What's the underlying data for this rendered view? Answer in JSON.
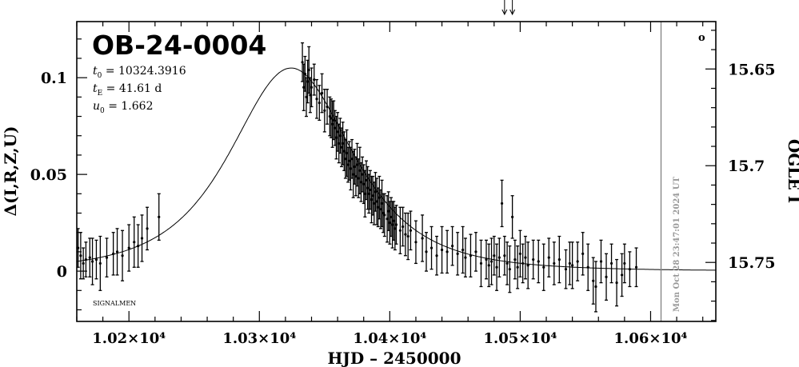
{
  "chart_data": {
    "type": "scatter",
    "title": "OB-24-0004",
    "xlabel": "HJD – 2450000",
    "ylabel": "Δ(I,R,Z,U)",
    "ylabel_right": "OGLE I",
    "xlim": [
      10160,
      10650
    ],
    "ylim": [
      -0.026,
      0.129
    ],
    "x_ticks": [
      {
        "value": 10200,
        "label": "1.02×10⁴"
      },
      {
        "value": 10300,
        "label": "1.03×10⁴"
      },
      {
        "value": 10400,
        "label": "1.04×10⁴"
      },
      {
        "value": 10500,
        "label": "1.05×10⁴"
      },
      {
        "value": 10600,
        "label": "1.06×10⁴"
      }
    ],
    "y_ticks": [
      {
        "value": 0,
        "label": "0"
      },
      {
        "value": 0.05,
        "label": "0.05"
      },
      {
        "value": 0.1,
        "label": "0.1"
      }
    ],
    "right_ticks": [
      {
        "value": 0.1045,
        "label": "15.65"
      },
      {
        "value": 0.0545,
        "label": "15.7"
      },
      {
        "value": 0.0045,
        "label": "15.75"
      }
    ],
    "params": [
      {
        "sym": "t",
        "sub": "0",
        "text": " = 10324.3916"
      },
      {
        "sym": "t",
        "sub": "E",
        "text": " = 41.61 d"
      },
      {
        "sym": "u",
        "sub": "0",
        "text": " = 1.662"
      }
    ],
    "model": {
      "t0": 10324.3916,
      "tE": 41.61,
      "u0": 1.662,
      "baseline": 0.0
    },
    "timestamp": "Mon Oct 28 23:47:01 2024 UT",
    "timestamp_x": 10608,
    "marker_label": "o",
    "footer": "SIGNALMEN",
    "arrows_x": [
      10488,
      10494
    ],
    "grid": false,
    "legend": "none",
    "series": [
      {
        "points": [
          [
            10161,
            0.012,
            0.01
          ],
          [
            10163,
            0.008,
            0.012
          ],
          [
            10165,
            0.004,
            0.008
          ],
          [
            10167,
            0.006,
            0.009
          ],
          [
            10170,
            0.007,
            0.01
          ],
          [
            10172,
            0.005,
            0.012
          ],
          [
            10175,
            0.006,
            0.01
          ],
          [
            10178,
            0.004,
            0.014
          ],
          [
            10183,
            0.007,
            0.01
          ],
          [
            10188,
            0.009,
            0.011
          ],
          [
            10191,
            0.01,
            0.012
          ],
          [
            10195,
            0.008,
            0.013
          ],
          [
            10200,
            0.012,
            0.012
          ],
          [
            10204,
            0.015,
            0.013
          ],
          [
            10207,
            0.013,
            0.011
          ],
          [
            10210,
            0.017,
            0.012
          ],
          [
            10214,
            0.022,
            0.011
          ],
          [
            10223,
            0.028,
            0.012
          ],
          [
            10333,
            0.108,
            0.01
          ],
          [
            10334,
            0.095,
            0.012
          ],
          [
            10335,
            0.102,
            0.009
          ],
          [
            10336,
            0.09,
            0.01
          ],
          [
            10337,
            0.098,
            0.011
          ],
          [
            10338,
            0.104,
            0.012
          ],
          [
            10339,
            0.091,
            0.009
          ],
          [
            10340,
            0.095,
            0.01
          ],
          [
            10342,
            0.099,
            0.008
          ],
          [
            10344,
            0.089,
            0.01
          ],
          [
            10346,
            0.087,
            0.009
          ],
          [
            10348,
            0.092,
            0.01
          ],
          [
            10350,
            0.083,
            0.011
          ],
          [
            10352,
            0.085,
            0.009
          ],
          [
            10354,
            0.08,
            0.01
          ],
          [
            10355,
            0.079,
            0.01
          ],
          [
            10356,
            0.076,
            0.012
          ],
          [
            10357,
            0.078,
            0.01
          ],
          [
            10358,
            0.074,
            0.009
          ],
          [
            10359,
            0.069,
            0.011
          ],
          [
            10360,
            0.072,
            0.01
          ],
          [
            10361,
            0.066,
            0.01
          ],
          [
            10362,
            0.07,
            0.009
          ],
          [
            10363,
            0.064,
            0.01
          ],
          [
            10364,
            0.066,
            0.011
          ],
          [
            10365,
            0.062,
            0.01
          ],
          [
            10366,
            0.058,
            0.01
          ],
          [
            10367,
            0.061,
            0.012
          ],
          [
            10368,
            0.055,
            0.009
          ],
          [
            10369,
            0.057,
            0.01
          ],
          [
            10370,
            0.053,
            0.011
          ],
          [
            10371,
            0.058,
            0.01
          ],
          [
            10372,
            0.05,
            0.012
          ],
          [
            10373,
            0.054,
            0.009
          ],
          [
            10374,
            0.049,
            0.01
          ],
          [
            10375,
            0.055,
            0.011
          ],
          [
            10376,
            0.048,
            0.01
          ],
          [
            10377,
            0.052,
            0.012
          ],
          [
            10378,
            0.046,
            0.01
          ],
          [
            10379,
            0.05,
            0.009
          ],
          [
            10380,
            0.045,
            0.01
          ],
          [
            10381,
            0.04,
            0.012
          ],
          [
            10382,
            0.047,
            0.01
          ],
          [
            10383,
            0.043,
            0.011
          ],
          [
            10384,
            0.04,
            0.01
          ],
          [
            10385,
            0.042,
            0.01
          ],
          [
            10386,
            0.037,
            0.012
          ],
          [
            10387,
            0.039,
            0.01
          ],
          [
            10388,
            0.035,
            0.011
          ],
          [
            10389,
            0.041,
            0.01
          ],
          [
            10390,
            0.036,
            0.012
          ],
          [
            10391,
            0.033,
            0.01
          ],
          [
            10392,
            0.038,
            0.011
          ],
          [
            10393,
            0.032,
            0.01
          ],
          [
            10394,
            0.035,
            0.012
          ],
          [
            10395,
            0.03,
            0.01
          ],
          [
            10396,
            0.029,
            0.011
          ],
          [
            10398,
            0.027,
            0.012
          ],
          [
            10399,
            0.031,
            0.01
          ],
          [
            10400,
            0.025,
            0.011
          ],
          [
            10401,
            0.028,
            0.01
          ],
          [
            10402,
            0.024,
            0.012
          ],
          [
            10403,
            0.026,
            0.01
          ],
          [
            10404,
            0.022,
            0.011
          ],
          [
            10405,
            0.024,
            0.01
          ],
          [
            10408,
            0.021,
            0.012
          ],
          [
            10410,
            0.023,
            0.01
          ],
          [
            10412,
            0.019,
            0.011
          ],
          [
            10414,
            0.018,
            0.012
          ],
          [
            10416,
            0.021,
            0.01
          ],
          [
            10420,
            0.015,
            0.011
          ],
          [
            10425,
            0.017,
            0.012
          ],
          [
            10428,
            0.01,
            0.01
          ],
          [
            10432,
            0.012,
            0.011
          ],
          [
            10436,
            0.008,
            0.01
          ],
          [
            10440,
            0.011,
            0.012
          ],
          [
            10444,
            0.01,
            0.011
          ],
          [
            10448,
            0.013,
            0.01
          ],
          [
            10452,
            0.009,
            0.011
          ],
          [
            10456,
            0.011,
            0.012
          ],
          [
            10458,
            0.007,
            0.01
          ],
          [
            10462,
            0.008,
            0.011
          ],
          [
            10466,
            0.01,
            0.01
          ],
          [
            10470,
            0.004,
            0.012
          ],
          [
            10474,
            0.006,
            0.01
          ],
          [
            10476,
            0.003,
            0.011
          ],
          [
            10478,
            0.005,
            0.012
          ],
          [
            10480,
            0.008,
            0.01
          ],
          [
            10482,
            0.002,
            0.012
          ],
          [
            10484,
            0.007,
            0.01
          ],
          [
            10486,
            0.035,
            0.012
          ],
          [
            10488,
            0.008,
            0.01
          ],
          [
            10490,
            0.004,
            0.011
          ],
          [
            10492,
            0.001,
            0.012
          ],
          [
            10494,
            0.028,
            0.011
          ],
          [
            10496,
            0.006,
            0.01
          ],
          [
            10498,
            0.002,
            0.011
          ],
          [
            10500,
            0.009,
            0.012
          ],
          [
            10502,
            0.004,
            0.01
          ],
          [
            10504,
            0.007,
            0.011
          ],
          [
            10506,
            0.003,
            0.012
          ],
          [
            10510,
            0.006,
            0.01
          ],
          [
            10514,
            0.005,
            0.011
          ],
          [
            10518,
            0.002,
            0.012
          ],
          [
            10522,
            0.007,
            0.01
          ],
          [
            10526,
            0.004,
            0.011
          ],
          [
            10530,
            0.006,
            0.012
          ],
          [
            10535,
            0.001,
            0.01
          ],
          [
            10538,
            0.004,
            0.011
          ],
          [
            10540,
            0.003,
            0.012
          ],
          [
            10544,
            0.005,
            0.01
          ],
          [
            10548,
            0.009,
            0.011
          ],
          [
            10552,
            0.002,
            0.012
          ],
          [
            10556,
            -0.005,
            0.012
          ],
          [
            10558,
            -0.008,
            0.013
          ],
          [
            10562,
            0.005,
            0.011
          ],
          [
            10566,
            -0.003,
            0.012
          ],
          [
            10570,
            0.004,
            0.01
          ],
          [
            10574,
            -0.006,
            0.012
          ],
          [
            10578,
            -0.002,
            0.011
          ],
          [
            10580,
            0.004,
            0.01
          ],
          [
            10584,
            0.001,
            0.009
          ],
          [
            10589,
            0.002,
            0.01
          ]
        ]
      }
    ]
  }
}
